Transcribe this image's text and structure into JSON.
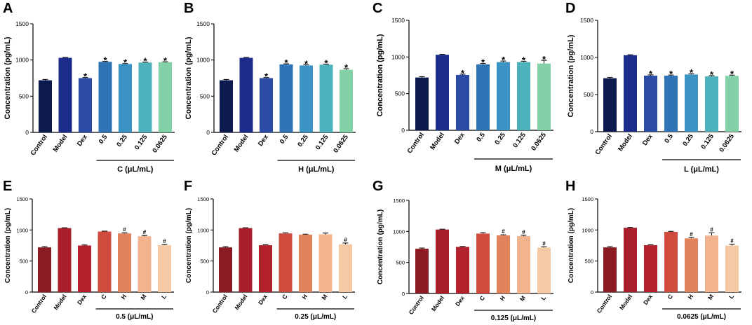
{
  "figure": {
    "chart_data": [
      {
        "panel": "A",
        "type": "bar",
        "categories": [
          "Control",
          "Model",
          "Dex",
          "0.5",
          "0.25",
          "0.125",
          "0.0625"
        ],
        "values": [
          720,
          1030,
          750,
          975,
          945,
          965,
          970
        ],
        "errors": [
          12,
          6,
          8,
          6,
          6,
          6,
          6
        ],
        "marks": [
          "",
          "",
          "*",
          "*",
          "*",
          "*",
          "*"
        ],
        "colors": [
          "#0d1a4d",
          "#1c2c8a",
          "#2c4ba6",
          "#2f74b5",
          "#3a93c2",
          "#4cb3bd",
          "#82d1a7"
        ],
        "group_label": "C (μL/mL)",
        "group_start": 3,
        "ylabel": "Concentration (pg/mL)",
        "ylim": [
          0,
          1500
        ],
        "yticks": [
          "0",
          "500",
          "1000",
          "1500"
        ]
      },
      {
        "panel": "B",
        "type": "bar",
        "categories": [
          "Control",
          "Model",
          "Dex",
          "0.5",
          "0.25",
          "0.125",
          "0.0625"
        ],
        "values": [
          720,
          1030,
          750,
          940,
          925,
          935,
          865
        ],
        "errors": [
          12,
          6,
          8,
          8,
          8,
          8,
          15
        ],
        "marks": [
          "",
          "",
          "*",
          "*",
          "*",
          "*",
          "*"
        ],
        "colors": [
          "#0d1a4d",
          "#1c2c8a",
          "#2c4ba6",
          "#2f74b5",
          "#3a93c2",
          "#4cb3bd",
          "#82d1a7"
        ],
        "group_label": "H (μL/mL)",
        "group_start": 3,
        "ylabel": "Concentration (pg/mL)",
        "ylim": [
          0,
          1500
        ],
        "yticks": [
          "0",
          "500",
          "1000",
          "1500"
        ]
      },
      {
        "panel": "C",
        "type": "bar",
        "categories": [
          "Control",
          "Model",
          "Dex",
          "0.5",
          "0.25",
          "0.125",
          "0.0625"
        ],
        "values": [
          720,
          1030,
          755,
          900,
          930,
          930,
          910
        ],
        "errors": [
          12,
          6,
          10,
          12,
          15,
          12,
          45
        ],
        "marks": [
          "",
          "",
          "*",
          "*",
          "*",
          "*",
          "*"
        ],
        "colors": [
          "#0d1a4d",
          "#1c2c8a",
          "#2c4ba6",
          "#2f74b5",
          "#3a93c2",
          "#4cb3bd",
          "#82d1a7"
        ],
        "group_label": "M (μL/mL)",
        "group_start": 3,
        "ylabel": "Concentration (pg/mL)",
        "ylim": [
          0,
          1500
        ],
        "yticks": [
          "0",
          "500",
          "1000",
          "1500"
        ]
      },
      {
        "panel": "D",
        "type": "bar",
        "categories": [
          "Control",
          "Model",
          "Dex",
          "0.5",
          "0.25",
          "0.125",
          "0.0625"
        ],
        "values": [
          720,
          1030,
          755,
          755,
          770,
          745,
          752
        ],
        "errors": [
          12,
          6,
          10,
          8,
          12,
          10,
          10
        ],
        "marks": [
          "",
          "",
          "*",
          "*",
          "*",
          "*",
          "*"
        ],
        "colors": [
          "#0d1a4d",
          "#1c2c8a",
          "#2c4ba6",
          "#2f74b5",
          "#3a93c2",
          "#4cb3bd",
          "#82d1a7"
        ],
        "group_label": "L (μL/mL)",
        "group_start": 3,
        "ylabel": "Concentration (pg/mL)",
        "ylim": [
          0,
          1500
        ],
        "yticks": [
          "0",
          "500",
          "1000",
          "1500"
        ]
      },
      {
        "panel": "E",
        "type": "bar",
        "categories": [
          "Control",
          "Model",
          "Dex",
          "C",
          "H",
          "M",
          "L"
        ],
        "values": [
          720,
          1030,
          750,
          975,
          945,
          900,
          755
        ],
        "errors": [
          12,
          6,
          8,
          6,
          8,
          12,
          10
        ],
        "marks": [
          "",
          "",
          "",
          "",
          "#",
          "#",
          "#"
        ],
        "colors": [
          "#8c1a22",
          "#a81e2a",
          "#b3222c",
          "#cf4b3e",
          "#e3835c",
          "#f2b48e",
          "#f5c9a3"
        ],
        "group_label": "0.5 (μL/mL)",
        "group_start": 3,
        "ylabel": "Concentration (pg/mL)",
        "ylim": [
          0,
          1500
        ],
        "yticks": [
          "0",
          "500",
          "1000",
          "1500"
        ]
      },
      {
        "panel": "F",
        "type": "bar",
        "categories": [
          "Control",
          "Model",
          "Dex",
          "C",
          "H",
          "M",
          "L"
        ],
        "values": [
          720,
          1030,
          755,
          945,
          925,
          930,
          770
        ],
        "errors": [
          12,
          6,
          8,
          8,
          8,
          20,
          20
        ],
        "marks": [
          "",
          "",
          "",
          "",
          "",
          "",
          "#"
        ],
        "colors": [
          "#8c1a22",
          "#a81e2a",
          "#b3222c",
          "#cf4b3e",
          "#e3835c",
          "#f2b48e",
          "#f5c9a3"
        ],
        "group_label": "0.25 (μL/mL)",
        "group_start": 3,
        "ylabel": "Concentration (pg/mL)",
        "ylim": [
          0,
          1500
        ],
        "yticks": [
          "0",
          "500",
          "1000",
          "1500"
        ]
      },
      {
        "panel": "G",
        "type": "bar",
        "categories": [
          "Control",
          "Model",
          "Dex",
          "C",
          "H",
          "M",
          "L"
        ],
        "values": [
          720,
          1030,
          750,
          965,
          935,
          925,
          740
        ],
        "errors": [
          12,
          6,
          8,
          15,
          10,
          12,
          12
        ],
        "marks": [
          "",
          "",
          "",
          "",
          "#",
          "#",
          "#"
        ],
        "colors": [
          "#8c1a22",
          "#a81e2a",
          "#b3222c",
          "#cf4b3e",
          "#e3835c",
          "#f2b48e",
          "#f5c9a3"
        ],
        "group_label": "0.125 (μL/mL)",
        "group_start": 3,
        "ylabel": "Concentration (pg/mL)",
        "ylim": [
          0,
          1500
        ],
        "yticks": [
          "0",
          "500",
          "1000",
          "1500"
        ]
      },
      {
        "panel": "H",
        "type": "bar",
        "categories": [
          "Control",
          "Model",
          "Dex",
          "C",
          "H",
          "M",
          "L"
        ],
        "values": [
          720,
          1035,
          755,
          970,
          865,
          910,
          750
        ],
        "errors": [
          12,
          6,
          8,
          8,
          15,
          45,
          20
        ],
        "marks": [
          "",
          "",
          "",
          "",
          "#",
          "#",
          "#"
        ],
        "colors": [
          "#8c1a22",
          "#a81e2a",
          "#b3222c",
          "#cf4b3e",
          "#e3835c",
          "#f2b48e",
          "#f5c9a3"
        ],
        "group_label": "0.0625 (μL/mL)",
        "group_start": 3,
        "ylabel": "Concentration (pg/mL)",
        "ylim": [
          0,
          1500
        ],
        "yticks": [
          "0",
          "500",
          "1000",
          "1500"
        ]
      }
    ]
  }
}
